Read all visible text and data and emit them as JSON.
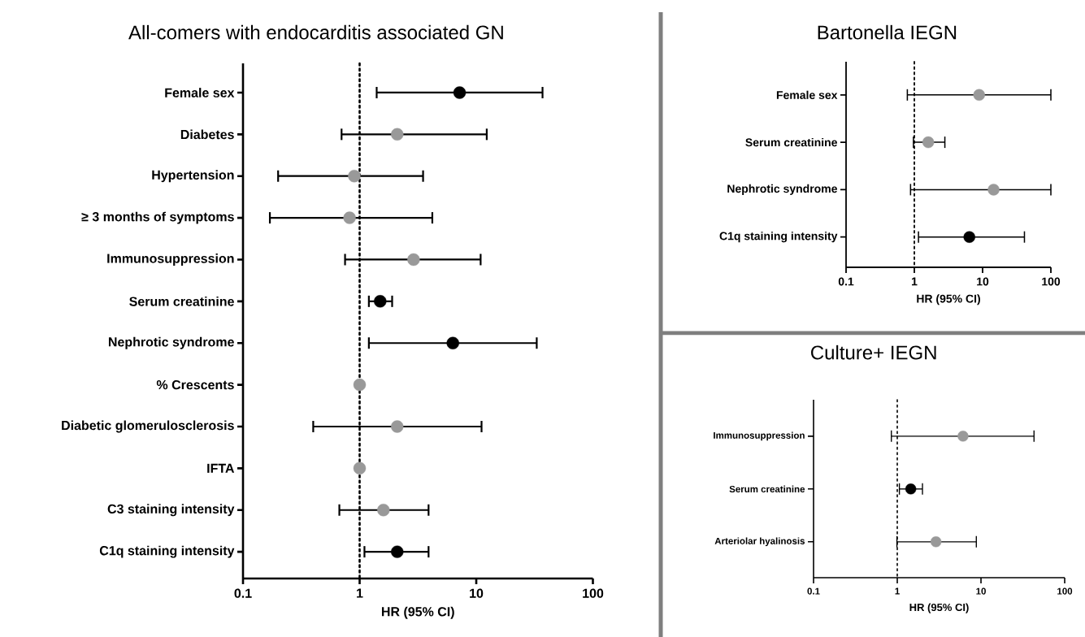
{
  "chart_data": [
    {
      "type": "scatter",
      "orientation": "horizontal",
      "title": "All-comers with endocarditis associated GN",
      "xlabel": "HR (95% CI)",
      "categories": [
        "Female sex",
        "Diabetes",
        "Hypertension",
        "≥ 3 months of symptoms",
        "Immunosuppression",
        "Serum creatinine",
        "Nephrotic syndrome",
        "% Crescents",
        "Diabetic glomerulosclerosis",
        "IFTA",
        "C3 staining intensity",
        "C1q staining intensity"
      ],
      "values": [
        7.2,
        2.1,
        0.9,
        0.82,
        2.9,
        1.5,
        6.3,
        1.0,
        2.1,
        1.0,
        1.6,
        2.1
      ],
      "errors": [
        [
          1.4,
          37
        ],
        [
          0.7,
          12.3
        ],
        [
          0.2,
          3.5
        ],
        [
          0.17,
          4.2
        ],
        [
          0.75,
          10.9
        ],
        [
          1.2,
          1.9
        ],
        [
          1.2,
          33
        ],
        null,
        [
          0.4,
          11.1
        ],
        null,
        [
          0.67,
          3.9
        ],
        [
          1.1,
          3.9
        ]
      ],
      "colors": [
        "#000000",
        "#999999",
        "#999999",
        "#999999",
        "#999999",
        "#000000",
        "#000000",
        "#999999",
        "#999999",
        "#999999",
        "#999999",
        "#000000"
      ],
      "marker": "circle",
      "log": "x",
      "xlim": [
        0.1,
        100
      ],
      "xticks": [
        0.1,
        1,
        10,
        100
      ],
      "ref_lines": [
        {
          "axis": "x",
          "value": 1,
          "line_style": "dotted"
        }
      ]
    },
    {
      "type": "scatter",
      "orientation": "horizontal",
      "title": "Bartonella IEGN",
      "xlabel": "HR (95% CI)",
      "categories": [
        "Female sex",
        "Serum creatinine",
        "Nephrotic syndrome",
        "C1q staining intensity"
      ],
      "values": [
        8.9,
        1.6,
        14.5,
        6.4
      ],
      "errors": [
        [
          0.79,
          100
        ],
        [
          0.97,
          2.8
        ],
        [
          0.88,
          100
        ],
        [
          1.15,
          41
        ]
      ],
      "colors": [
        "#999999",
        "#999999",
        "#999999",
        "#000000"
      ],
      "marker": "circle",
      "log": "x",
      "xlim": [
        0.1,
        100
      ],
      "xticks": [
        0.1,
        1,
        10,
        100
      ],
      "ref_lines": [
        {
          "axis": "x",
          "value": 1,
          "line_style": "dotted"
        }
      ]
    },
    {
      "type": "scatter",
      "orientation": "horizontal",
      "title": "Culture+ IEGN",
      "xlabel": "HR (95% CI)",
      "categories": [
        "Immunosuppression",
        "Serum creatinine",
        "Arteriolar hyalinosis"
      ],
      "values": [
        6.1,
        1.45,
        2.9
      ],
      "errors": [
        [
          0.85,
          43
        ],
        [
          1.06,
          2.0
        ],
        [
          0.99,
          8.8
        ]
      ],
      "colors": [
        "#999999",
        "#000000",
        "#999999"
      ],
      "marker": "circle",
      "log": "x",
      "xlim": [
        0.1,
        100
      ],
      "xticks": [
        0.1,
        1,
        10,
        100
      ],
      "ref_lines": [
        {
          "axis": "x",
          "value": 1,
          "line_style": "dotted"
        }
      ]
    }
  ]
}
